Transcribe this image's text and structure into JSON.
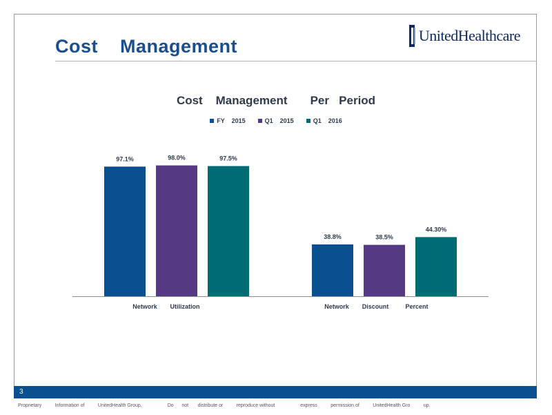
{
  "slide": {
    "title": "Cost    Management",
    "logo_text": "UnitedHealthcare",
    "slide_number": "3",
    "footer_note": "Proprietary          Information of          UnitedHealth Group.                   Do      not       distribute or          reproduce without                   express          permission of          UnitedHealth Gro          up."
  },
  "colors": {
    "title": "#1b4f8c",
    "footer_bar": "#0a4f8f",
    "fy2015": "#0a4f8f",
    "q12015": "#553982",
    "q12016": "#006b74"
  },
  "chart_data": {
    "type": "bar",
    "title": "Cost    Management       Per   Period",
    "legend_position": "top",
    "grid": false,
    "series": [
      {
        "name": "FY    2015",
        "color": "#0a4f8f"
      },
      {
        "name": "Q1    2015",
        "color": "#553982"
      },
      {
        "name": "Q1    2016",
        "color": "#006b74"
      }
    ],
    "groups": [
      {
        "category_labels": [
          "Network",
          "Utilization"
        ],
        "values": [
          97.1,
          98.0,
          97.5
        ],
        "value_labels": [
          "97.1%",
          "98.0%",
          "97.5%"
        ]
      },
      {
        "category_labels": [
          "Network",
          "Discount",
          "Percent"
        ],
        "values": [
          38.8,
          38.5,
          44.3
        ],
        "value_labels": [
          "38.8%",
          "38.5%",
          "44.30%"
        ]
      }
    ],
    "ylim": [
      0,
      105
    ]
  }
}
